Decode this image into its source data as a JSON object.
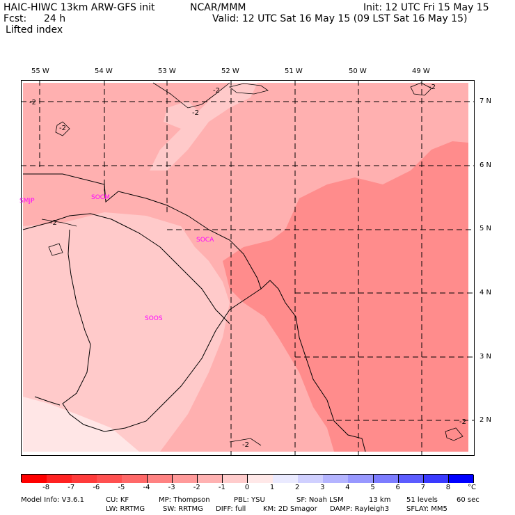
{
  "header": {
    "title": "HAIC-HIWC 13km ARW-GFS init",
    "org": "NCAR/MMM",
    "init": "Init: 12 UTC Fri 15 May 15",
    "fcst_label": "Fcst:",
    "fcst_value": "24 h",
    "valid": "Valid: 12 UTC Sat 16 May 15 (09 LST Sat 16 May 15)",
    "field": "Lifted index"
  },
  "map": {
    "lon_labels": [
      "55 W",
      "54 W",
      "53 W",
      "52 W",
      "51 W",
      "50 W",
      "49 W"
    ],
    "lat_labels": [
      "7 N",
      "6 N",
      "5 N",
      "4 N",
      "3 N",
      "2 N"
    ],
    "contour_label": "-2",
    "stations": [
      "SMJP",
      "SOCM",
      "SOCA",
      "SOOS"
    ]
  },
  "colorbar": {
    "ticks": [
      "-8",
      "-7",
      "-6",
      "-5",
      "-4",
      "-3",
      "-2",
      "-1",
      "0",
      "1",
      "2",
      "3",
      "4",
      "5",
      "6",
      "7",
      "8"
    ],
    "unit": "°C",
    "colors": [
      "#ff0000",
      "#ff2222",
      "#ff3b3b",
      "#ff5050",
      "#ff6868",
      "#ff8282",
      "#ff9a9a",
      "#ffb2b2",
      "#ffcccc",
      "#ffe8e8",
      "#eaeaff",
      "#d0d0ff",
      "#b4b4ff",
      "#9898ff",
      "#7c7cff",
      "#5c5cff",
      "#3a3aff",
      "#0000ff"
    ]
  },
  "footer": {
    "line1": [
      "Model Info: V3.6.1",
      "CU: KF",
      "MP: Thompson",
      "PBL: YSU",
      "SF: Noah LSM",
      "13 km",
      "51 levels",
      "60 sec"
    ],
    "line2": [
      "LW: RRTMG",
      "SW: RRTMG",
      "DIFF: full",
      "KM: 2D Smagor",
      "DAMP: Rayleigh3",
      "SFLAY: MM5"
    ]
  }
}
